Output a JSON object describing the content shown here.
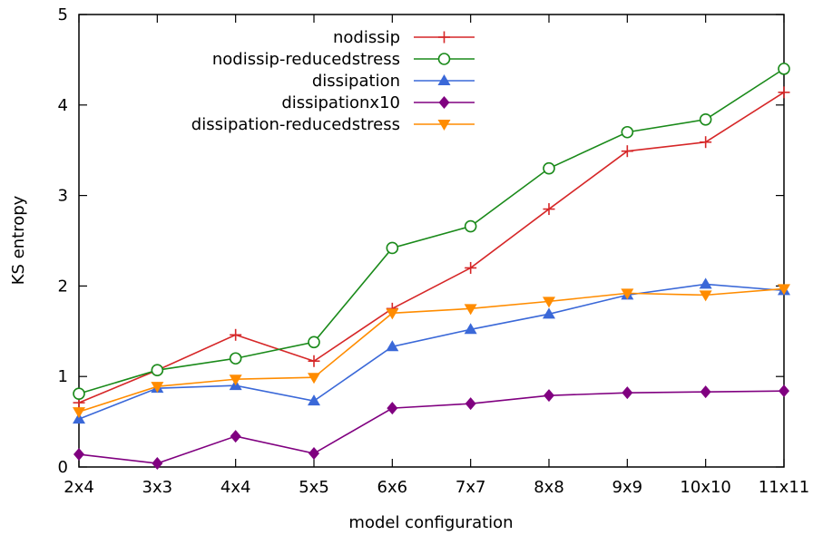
{
  "chart_data": {
    "type": "line",
    "xlabel": "model configuration",
    "ylabel": "KS entropy",
    "categories": [
      "2x4",
      "3x3",
      "4x4",
      "5x5",
      "6x6",
      "7x7",
      "8x8",
      "9x9",
      "10x10",
      "11x11"
    ],
    "ylim": [
      0,
      5
    ],
    "yticks": [
      0,
      1,
      2,
      3,
      4,
      5
    ],
    "grid": false,
    "legend_position": "top-right",
    "series": [
      {
        "name": "nodissip",
        "color": "#d62728",
        "marker": "plus",
        "values": [
          0.71,
          1.07,
          1.46,
          1.17,
          1.75,
          2.2,
          2.85,
          3.49,
          3.59,
          4.14
        ]
      },
      {
        "name": "nodissip-reducedstress",
        "color": "#1a8a1a",
        "marker": "open-circle",
        "values": [
          0.81,
          1.07,
          1.2,
          1.38,
          2.42,
          2.66,
          3.3,
          3.7,
          3.84,
          4.4
        ]
      },
      {
        "name": "dissipation",
        "color": "#3a68d8",
        "marker": "triangle-up",
        "values": [
          0.53,
          0.87,
          0.9,
          0.73,
          1.33,
          1.52,
          1.69,
          1.9,
          2.02,
          1.95
        ]
      },
      {
        "name": "dissipationx10",
        "color": "#800080",
        "marker": "diamond",
        "values": [
          0.14,
          0.04,
          0.34,
          0.15,
          0.65,
          0.7,
          0.79,
          0.82,
          0.83,
          0.84
        ]
      },
      {
        "name": "dissipation-reducedstress",
        "color": "#ff8c00",
        "marker": "triangle-down",
        "values": [
          0.61,
          0.89,
          0.97,
          0.99,
          1.7,
          1.75,
          1.83,
          1.92,
          1.9,
          1.97
        ]
      }
    ]
  }
}
